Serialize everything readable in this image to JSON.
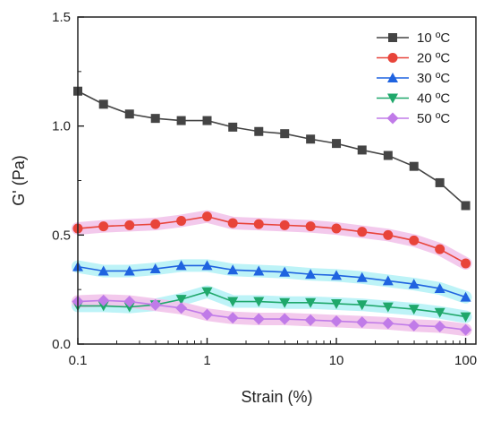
{
  "chart_data": {
    "type": "line",
    "title": "",
    "xlabel": "Strain (%)",
    "ylabel": "G' (Pa)",
    "x_scale": "log",
    "xlim": [
      0.1,
      120
    ],
    "ylim": [
      0,
      1.5
    ],
    "x_ticks": [
      {
        "value": 0.1,
        "label": "0.1"
      },
      {
        "value": 1,
        "label": "1"
      },
      {
        "value": 10,
        "label": "10"
      },
      {
        "value": 100,
        "label": "100"
      }
    ],
    "y_ticks": [
      {
        "value": 0.0,
        "label": "0.0"
      },
      {
        "value": 0.5,
        "label": "0.5"
      },
      {
        "value": 1.0,
        "label": "1.0"
      },
      {
        "value": 1.5,
        "label": "1.5"
      }
    ],
    "grid": false,
    "legend_position": "top-right",
    "x": [
      0.1,
      0.158,
      0.251,
      0.398,
      0.631,
      1.0,
      1.58,
      2.51,
      3.98,
      6.31,
      10.0,
      15.8,
      25.1,
      39.8,
      63.1,
      100.0
    ],
    "series": [
      {
        "name": "10 ºC",
        "marker": "square",
        "color": "#444444",
        "glow": "",
        "values": [
          1.16,
          1.1,
          1.055,
          1.035,
          1.025,
          1.025,
          0.995,
          0.975,
          0.965,
          0.94,
          0.92,
          0.89,
          0.865,
          0.815,
          0.74,
          0.635
        ]
      },
      {
        "name": "20 ºC",
        "marker": "circle",
        "color": "#e8443a",
        "glow": "#f2c3ea",
        "values": [
          0.53,
          0.54,
          0.545,
          0.55,
          0.565,
          0.585,
          0.555,
          0.55,
          0.545,
          0.54,
          0.53,
          0.515,
          0.5,
          0.475,
          0.435,
          0.37
        ]
      },
      {
        "name": "30 ºC",
        "marker": "triangle-up",
        "color": "#1f63e0",
        "glow": "#b6f2f6",
        "values": [
          0.355,
          0.335,
          0.335,
          0.345,
          0.36,
          0.36,
          0.34,
          0.335,
          0.33,
          0.32,
          0.315,
          0.305,
          0.29,
          0.275,
          0.255,
          0.215
        ]
      },
      {
        "name": "40 ºC",
        "marker": "triangle-down",
        "color": "#1fa86b",
        "glow": "#b6f2f6",
        "values": [
          0.175,
          0.175,
          0.17,
          0.18,
          0.205,
          0.24,
          0.195,
          0.195,
          0.19,
          0.19,
          0.185,
          0.18,
          0.17,
          0.16,
          0.145,
          0.125
        ]
      },
      {
        "name": "50 ºC",
        "marker": "diamond",
        "color": "#c07be8",
        "glow": "#f2c3ea",
        "values": [
          0.195,
          0.2,
          0.195,
          0.18,
          0.165,
          0.135,
          0.12,
          0.115,
          0.115,
          0.11,
          0.105,
          0.1,
          0.095,
          0.085,
          0.08,
          0.065
        ]
      }
    ]
  }
}
